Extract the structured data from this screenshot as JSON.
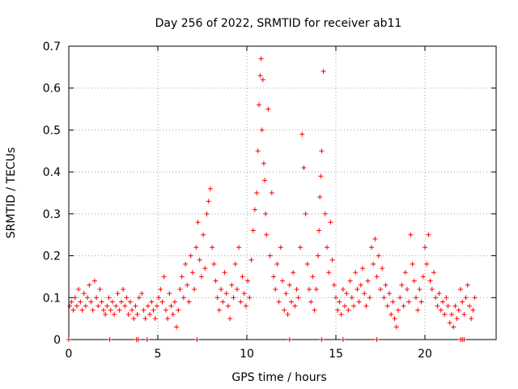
{
  "chart_data": {
    "type": "scatter",
    "title": "Day 256 of 2022, SRMTID for receiver ab11",
    "xlabel": "GPS time / hours",
    "ylabel": "SRMTID / TECUs",
    "xlim": [
      0,
      24
    ],
    "ylim": [
      0,
      0.7
    ],
    "xticks": [
      0,
      5,
      10,
      15,
      20
    ],
    "xtick_labels": [
      "0",
      "5",
      "10",
      "15",
      "20"
    ],
    "yticks": [
      0,
      0.1,
      0.2,
      0.3,
      0.4,
      0.5,
      0.6,
      0.7
    ],
    "ytick_labels": [
      "0",
      "0.1",
      "0.2",
      "0.3",
      "0.4",
      "0.5",
      "0.6",
      "0.7"
    ],
    "grid": true,
    "marker": "+",
    "color": "#ff0000",
    "series": [
      {
        "name": "ab11",
        "x": [
          0.05,
          0.15,
          0.25,
          0.35,
          0.45,
          0.55,
          0.65,
          0.75,
          0.85,
          0.95,
          1.05,
          1.15,
          1.25,
          1.35,
          1.45,
          1.55,
          1.65,
          1.75,
          1.85,
          1.95,
          2.05,
          2.15,
          2.25,
          2.35,
          2.45,
          2.55,
          2.65,
          2.75,
          2.85,
          2.95,
          3.05,
          3.15,
          3.25,
          3.35,
          3.45,
          3.55,
          3.65,
          3.75,
          3.85,
          3.95,
          4.1,
          4.2,
          4.3,
          4.45,
          4.55,
          4.65,
          4.75,
          4.85,
          4.95,
          5.05,
          5.15,
          5.25,
          5.35,
          5.45,
          5.55,
          5.65,
          5.75,
          5.85,
          5.95,
          6.05,
          6.15,
          6.25,
          6.35,
          6.45,
          6.55,
          6.65,
          6.75,
          6.85,
          6.95,
          7.05,
          7.15,
          7.25,
          7.35,
          7.45,
          7.55,
          7.65,
          7.75,
          7.85,
          7.95,
          8.05,
          8.15,
          8.25,
          8.35,
          8.45,
          8.55,
          8.65,
          8.75,
          8.85,
          8.95,
          9.05,
          9.15,
          9.25,
          9.35,
          9.45,
          9.55,
          9.65,
          9.75,
          9.85,
          9.95,
          10.05,
          10.15,
          10.25,
          10.35,
          10.45,
          10.55,
          10.62,
          10.68,
          10.75,
          10.8,
          10.85,
          10.9,
          10.95,
          11.0,
          11.05,
          11.1,
          11.2,
          11.3,
          11.4,
          11.5,
          11.6,
          11.7,
          11.8,
          11.9,
          12.0,
          12.1,
          12.2,
          12.3,
          12.4,
          12.5,
          12.6,
          12.7,
          12.8,
          12.9,
          13.0,
          13.1,
          13.2,
          13.3,
          13.4,
          13.5,
          13.6,
          13.7,
          13.8,
          13.9,
          14.0,
          14.05,
          14.1,
          14.15,
          14.2,
          14.3,
          14.4,
          14.5,
          14.6,
          14.7,
          14.8,
          14.9,
          15.0,
          15.1,
          15.2,
          15.3,
          15.4,
          15.5,
          15.6,
          15.7,
          15.8,
          15.9,
          16.0,
          16.1,
          16.2,
          16.3,
          16.4,
          16.5,
          16.6,
          16.7,
          16.8,
          16.9,
          17.0,
          17.1,
          17.2,
          17.3,
          17.4,
          17.5,
          17.6,
          17.7,
          17.8,
          17.9,
          18.0,
          18.1,
          18.2,
          18.3,
          18.4,
          18.5,
          18.6,
          18.7,
          18.8,
          18.9,
          19.0,
          19.1,
          19.2,
          19.3,
          19.4,
          19.5,
          19.6,
          19.7,
          19.8,
          19.9,
          20.0,
          20.1,
          20.2,
          20.3,
          20.4,
          20.5,
          20.6,
          20.7,
          20.8,
          20.9,
          21.0,
          21.1,
          21.2,
          21.3,
          21.4,
          21.5,
          21.6,
          21.7,
          21.8,
          21.9,
          22.0,
          22.1,
          22.2,
          22.3,
          22.4,
          22.5,
          22.6,
          22.7,
          22.8,
          0.0,
          3.8,
          3.9,
          4.4,
          22.0,
          22.1,
          22.2,
          2.3,
          7.2,
          12.4,
          14.2,
          15.4,
          17.3
        ],
        "y": [
          0.08,
          0.09,
          0.07,
          0.1,
          0.08,
          0.12,
          0.09,
          0.07,
          0.11,
          0.08,
          0.1,
          0.13,
          0.09,
          0.07,
          0.14,
          0.1,
          0.08,
          0.12,
          0.09,
          0.07,
          0.06,
          0.08,
          0.1,
          0.07,
          0.09,
          0.06,
          0.08,
          0.11,
          0.07,
          0.09,
          0.12,
          0.08,
          0.1,
          0.06,
          0.09,
          0.07,
          0.05,
          0.08,
          0.06,
          0.1,
          0.11,
          0.07,
          0.05,
          0.08,
          0.06,
          0.09,
          0.07,
          0.05,
          0.08,
          0.1,
          0.12,
          0.09,
          0.15,
          0.07,
          0.05,
          0.11,
          0.08,
          0.06,
          0.09,
          0.03,
          0.07,
          0.12,
          0.15,
          0.1,
          0.18,
          0.13,
          0.09,
          0.2,
          0.16,
          0.12,
          0.22,
          0.28,
          0.19,
          0.15,
          0.25,
          0.17,
          0.3,
          0.33,
          0.36,
          0.22,
          0.18,
          0.14,
          0.1,
          0.07,
          0.12,
          0.09,
          0.16,
          0.11,
          0.08,
          0.05,
          0.13,
          0.1,
          0.18,
          0.12,
          0.22,
          0.09,
          0.15,
          0.11,
          0.08,
          0.14,
          0.1,
          0.19,
          0.26,
          0.31,
          0.35,
          0.45,
          0.56,
          0.63,
          0.67,
          0.5,
          0.62,
          0.42,
          0.38,
          0.3,
          0.25,
          0.55,
          0.2,
          0.35,
          0.15,
          0.12,
          0.18,
          0.09,
          0.22,
          0.14,
          0.07,
          0.11,
          0.06,
          0.13,
          0.09,
          0.16,
          0.08,
          0.12,
          0.1,
          0.22,
          0.49,
          0.41,
          0.3,
          0.18,
          0.12,
          0.09,
          0.15,
          0.07,
          0.12,
          0.2,
          0.26,
          0.34,
          0.39,
          0.45,
          0.64,
          0.3,
          0.22,
          0.16,
          0.28,
          0.19,
          0.13,
          0.1,
          0.07,
          0.09,
          0.06,
          0.12,
          0.08,
          0.11,
          0.07,
          0.14,
          0.1,
          0.08,
          0.16,
          0.12,
          0.09,
          0.13,
          0.17,
          0.11,
          0.08,
          0.14,
          0.1,
          0.22,
          0.18,
          0.24,
          0.15,
          0.2,
          0.12,
          0.17,
          0.1,
          0.13,
          0.08,
          0.11,
          0.06,
          0.09,
          0.05,
          0.03,
          0.07,
          0.1,
          0.13,
          0.08,
          0.16,
          0.12,
          0.09,
          0.25,
          0.18,
          0.14,
          0.1,
          0.07,
          0.12,
          0.09,
          0.15,
          0.22,
          0.18,
          0.25,
          0.14,
          0.12,
          0.16,
          0.1,
          0.08,
          0.11,
          0.07,
          0.09,
          0.06,
          0.1,
          0.08,
          0.04,
          0.06,
          0.03,
          0.08,
          0.05,
          0.07,
          0.12,
          0.09,
          0.06,
          0.1,
          0.13,
          0.08,
          0.05,
          0.07,
          0.1,
          0.0,
          0.0,
          0.0,
          0.0,
          0.0,
          0.0,
          0.0,
          0.0,
          0.0,
          0.0,
          0.0,
          0.0,
          0.0
        ]
      }
    ]
  }
}
